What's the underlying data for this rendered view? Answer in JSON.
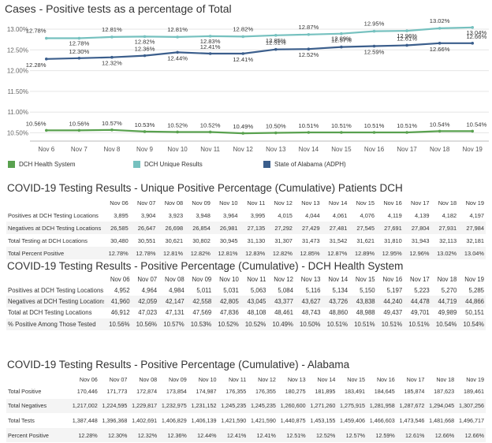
{
  "chart_data": {
    "type": "line",
    "title": "Cases - Positive tests as a percentage of Total",
    "categories": [
      "Nov 6",
      "Nov 7",
      "Nov 8",
      "Nov 9",
      "Nov 10",
      "Nov 11",
      "Nov 12",
      "Nov 13",
      "Nov 14",
      "Nov 15",
      "Nov 16",
      "Nov 17",
      "Nov 18",
      "Nov 19"
    ],
    "y_ticks": [
      "13.00%",
      "12.50%",
      "12.00%",
      "11.50%",
      "11.00%",
      "10.50%"
    ],
    "ylim": [
      10.32,
      13.17
    ],
    "grid": true,
    "legend_position": "bottom",
    "series": [
      {
        "name": "DCH Health System",
        "color": "#59a14f",
        "values": [
          10.56,
          10.56,
          10.57,
          10.53,
          10.52,
          10.52,
          10.49,
          10.5,
          10.51,
          10.51,
          10.51,
          10.51,
          10.54,
          10.54
        ],
        "labels": [
          "10.56%",
          "10.56%",
          "10.57%",
          "10.53%",
          "10.52%",
          "10.52%",
          "10.49%",
          "10.50%",
          "10.51%",
          "10.51%",
          "10.51%",
          "10.51%",
          "10.54%",
          "10.54%"
        ]
      },
      {
        "name": "DCH Unique Results",
        "color": "#76c1bf",
        "values": [
          12.78,
          12.78,
          12.81,
          12.82,
          12.81,
          12.83,
          12.82,
          12.85,
          12.87,
          12.89,
          12.95,
          12.96,
          13.02,
          13.04
        ],
        "labels": [
          "12.78%",
          "12.78%",
          "12.81%",
          "12.82%",
          "12.81%",
          "12.83%",
          "12.82%",
          "12.85%",
          "12.87%",
          "12.89%",
          "12.95%",
          "12.96%",
          "13.02%",
          "13.04%"
        ]
      },
      {
        "name": "State of Alabama (ADPH)",
        "color": "#3b5e8c",
        "values": [
          12.28,
          12.3,
          12.32,
          12.36,
          12.44,
          12.41,
          12.41,
          12.51,
          12.52,
          12.57,
          12.59,
          12.61,
          12.66,
          12.66
        ],
        "labels": [
          "12.28%",
          "12.30%",
          "12.32%",
          "12.36%",
          "12.44%",
          "12.41%",
          "12.41%",
          "12.51%",
          "12.52%",
          "12.57%",
          "12.59%",
          "12.61%",
          "12.66%",
          "12.66%"
        ]
      }
    ]
  },
  "tables": [
    {
      "title": "COVID-19 Testing Results - Unique Positive Percentage (Cumulative) Patients DCH",
      "columns": [
        "Nov 06",
        "Nov 07",
        "Nov 08",
        "Nov 09",
        "Nov 10",
        "Nov 11",
        "Nov 12",
        "Nov 13",
        "Nov 14",
        "Nov 15",
        "Nov 16",
        "Nov 17",
        "Nov 18",
        "Nov 19"
      ],
      "rows": [
        {
          "label": "Positives at DCH Testing Locations",
          "values": [
            "3,895",
            "3,904",
            "3,923",
            "3,948",
            "3,964",
            "3,995",
            "4,015",
            "4,044",
            "4,061",
            "4,076",
            "4,119",
            "4,139",
            "4,182",
            "4,197"
          ]
        },
        {
          "label": "Negatives at DCH Testing Locations",
          "values": [
            "26,585",
            "26,647",
            "26,698",
            "26,854",
            "26,981",
            "27,135",
            "27,292",
            "27,429",
            "27,481",
            "27,545",
            "27,691",
            "27,804",
            "27,931",
            "27,984"
          ]
        },
        {
          "label": "Total Testing at DCH Locations",
          "values": [
            "30,480",
            "30,551",
            "30,621",
            "30,802",
            "30,945",
            "31,130",
            "31,307",
            "31,473",
            "31,542",
            "31,621",
            "31,810",
            "31,943",
            "32,113",
            "32,181"
          ]
        },
        {
          "label": "Total Percent Positive",
          "values": [
            "12.78%",
            "12.78%",
            "12.81%",
            "12.82%",
            "12.81%",
            "12.83%",
            "12.82%",
            "12.85%",
            "12.87%",
            "12.89%",
            "12.95%",
            "12.96%",
            "13.02%",
            "13.04%"
          ]
        }
      ]
    },
    {
      "title": "COVID-19 Testing Results - Positive Percentage (Cumulative) - DCH Health System",
      "columns": [
        "Nov 06",
        "Nov 07",
        "Nov 08",
        "Nov 09",
        "Nov 10",
        "Nov 11",
        "Nov 12",
        "Nov 13",
        "Nov 14",
        "Nov 15",
        "Nov 16",
        "Nov 17",
        "Nov 18",
        "Nov 19"
      ],
      "rows": [
        {
          "label": "Positives at DCH Testing Locations",
          "values": [
            "4,952",
            "4,964",
            "4,984",
            "5,011",
            "5,031",
            "5,063",
            "5,084",
            "5,116",
            "5,134",
            "5,150",
            "5,197",
            "5,223",
            "5,270",
            "5,285"
          ]
        },
        {
          "label": "Negatives at DCH Testing Locations",
          "values": [
            "41,960",
            "42,059",
            "42,147",
            "42,558",
            "42,805",
            "43,045",
            "43,377",
            "43,627",
            "43,726",
            "43,838",
            "44,240",
            "44,478",
            "44,719",
            "44,866"
          ]
        },
        {
          "label": "Total at DCH Testing Locations",
          "values": [
            "46,912",
            "47,023",
            "47,131",
            "47,569",
            "47,836",
            "48,108",
            "48,461",
            "48,743",
            "48,860",
            "48,988",
            "49,437",
            "49,701",
            "49,989",
            "50,151"
          ]
        },
        {
          "label": "% Positive Among Those Tested",
          "values": [
            "10.56%",
            "10.56%",
            "10.57%",
            "10.53%",
            "10.52%",
            "10.52%",
            "10.49%",
            "10.50%",
            "10.51%",
            "10.51%",
            "10.51%",
            "10.51%",
            "10.54%",
            "10.54%"
          ]
        }
      ]
    },
    {
      "title": "COVID-19 Testing Results - Positive Percentage (Cumulative) - Alabama",
      "columns": [
        "Nov 06",
        "Nov 07",
        "Nov 08",
        "Nov 09",
        "Nov 10",
        "Nov 11",
        "Nov 12",
        "Nov 13",
        "Nov 14",
        "Nov 15",
        "Nov 16",
        "Nov 17",
        "Nov 18",
        "Nov 19"
      ],
      "rows": [
        {
          "label": "Total Positive",
          "values": [
            "170,446",
            "171,773",
            "172,874",
            "173,854",
            "174,987",
            "176,355",
            "176,355",
            "180,275",
            "181,895",
            "183,491",
            "184,645",
            "185,874",
            "187,623",
            "189,461"
          ]
        },
        {
          "label": "Total Negatives",
          "values": [
            "1,217,002",
            "1,224,595",
            "1,229,817",
            "1,232,975",
            "1,231,152",
            "1,245,235",
            "1,245,235",
            "1,260,600",
            "1,271,260",
            "1,275,915",
            "1,281,958",
            "1,287,672",
            "1,294,045",
            "1,307,256"
          ]
        },
        {
          "label": "Total Tests",
          "values": [
            "1,387,448",
            "1,396,368",
            "1,402,691",
            "1,406,829",
            "1,406,139",
            "1,421,590",
            "1,421,590",
            "1,440,875",
            "1,453,155",
            "1,459,406",
            "1,466,603",
            "1,473,546",
            "1,481,668",
            "1,496,717"
          ]
        },
        {
          "label": "Percent Positive",
          "values": [
            "12.28%",
            "12.30%",
            "12.32%",
            "12.36%",
            "12.44%",
            "12.41%",
            "12.41%",
            "12.51%",
            "12.52%",
            "12.57%",
            "12.59%",
            "12.61%",
            "12.66%",
            "12.66%"
          ]
        }
      ]
    }
  ]
}
